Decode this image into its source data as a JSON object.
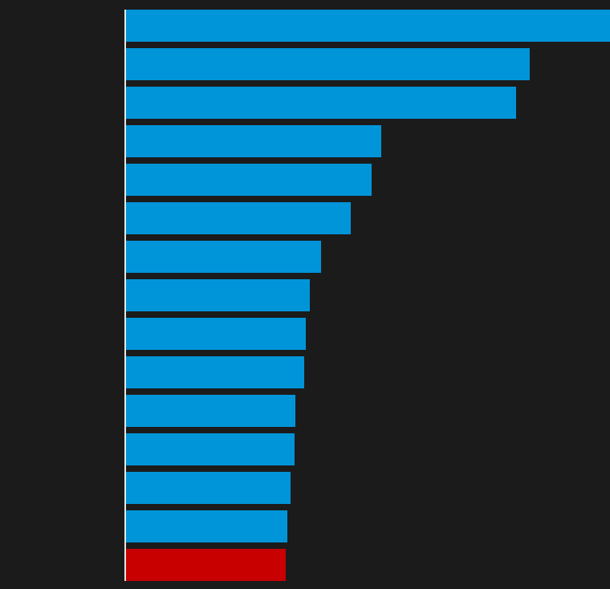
{
  "chart_data": {
    "type": "barh",
    "categories": [
      null,
      null,
      null,
      null,
      null,
      null,
      null,
      null,
      null,
      null,
      null,
      null,
      null,
      null,
      null
    ],
    "values": [
      603,
      503,
      486,
      318,
      306,
      280,
      243,
      229,
      224,
      222,
      211,
      210,
      205,
      201,
      199
    ],
    "colors": [
      "#0095d9",
      "#0095d9",
      "#0095d9",
      "#0095d9",
      "#0095d9",
      "#0095d9",
      "#0095d9",
      "#0095d9",
      "#0095d9",
      "#0095d9",
      "#0095d9",
      "#0095d9",
      "#0095d9",
      "#0095d9",
      "#c80000"
    ],
    "xlim": [
      0,
      603
    ]
  }
}
